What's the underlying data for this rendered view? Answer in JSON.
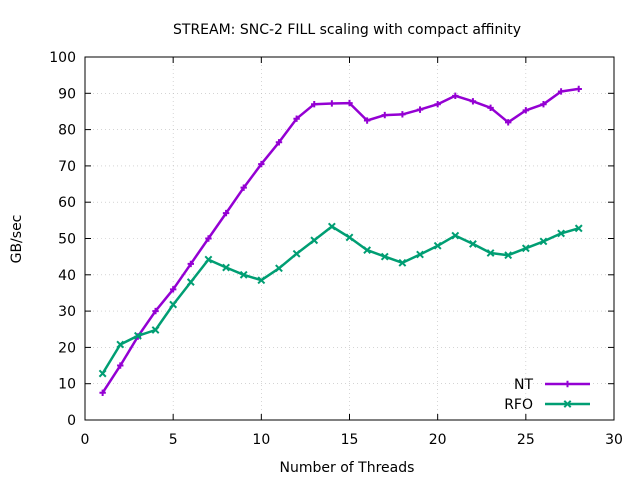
{
  "chart_data": {
    "type": "line",
    "title": "STREAM: SNC-2 FILL scaling with compact affinity",
    "xlabel": "Number of Threads",
    "ylabel": "GB/sec",
    "xlim": [
      0,
      30
    ],
    "ylim": [
      0,
      100
    ],
    "xticks": [
      0,
      5,
      10,
      15,
      20,
      25,
      30
    ],
    "yticks": [
      0,
      10,
      20,
      30,
      40,
      50,
      60,
      70,
      80,
      90,
      100
    ],
    "grid": true,
    "legend_position": "bottom-right",
    "x": [
      1,
      2,
      3,
      4,
      5,
      6,
      7,
      8,
      9,
      10,
      11,
      12,
      13,
      14,
      15,
      16,
      17,
      18,
      19,
      20,
      21,
      22,
      23,
      24,
      25,
      26,
      27,
      28
    ],
    "series": [
      {
        "name": "NT",
        "color": "#9400d3",
        "marker": "plus",
        "values": [
          7.5,
          15,
          23,
          30,
          36,
          43,
          50,
          57,
          64,
          70.5,
          76.5,
          83,
          87,
          87.2,
          87.3,
          82.5,
          84,
          84.2,
          85.5,
          87,
          89.3,
          87.8,
          86,
          82,
          85.3,
          87,
          90.5,
          91.2
        ]
      },
      {
        "name": "RFO",
        "color": "#009e73",
        "marker": "x",
        "values": [
          12.8,
          20.8,
          23.2,
          24.8,
          31.8,
          38,
          44.2,
          42,
          40,
          38.5,
          41.8,
          45.8,
          49.5,
          53.3,
          50.3,
          46.8,
          45,
          43.3,
          45.6,
          48,
          50.8,
          48.5,
          46,
          45.4,
          47.3,
          49.2,
          51.4,
          52.8
        ]
      }
    ]
  }
}
